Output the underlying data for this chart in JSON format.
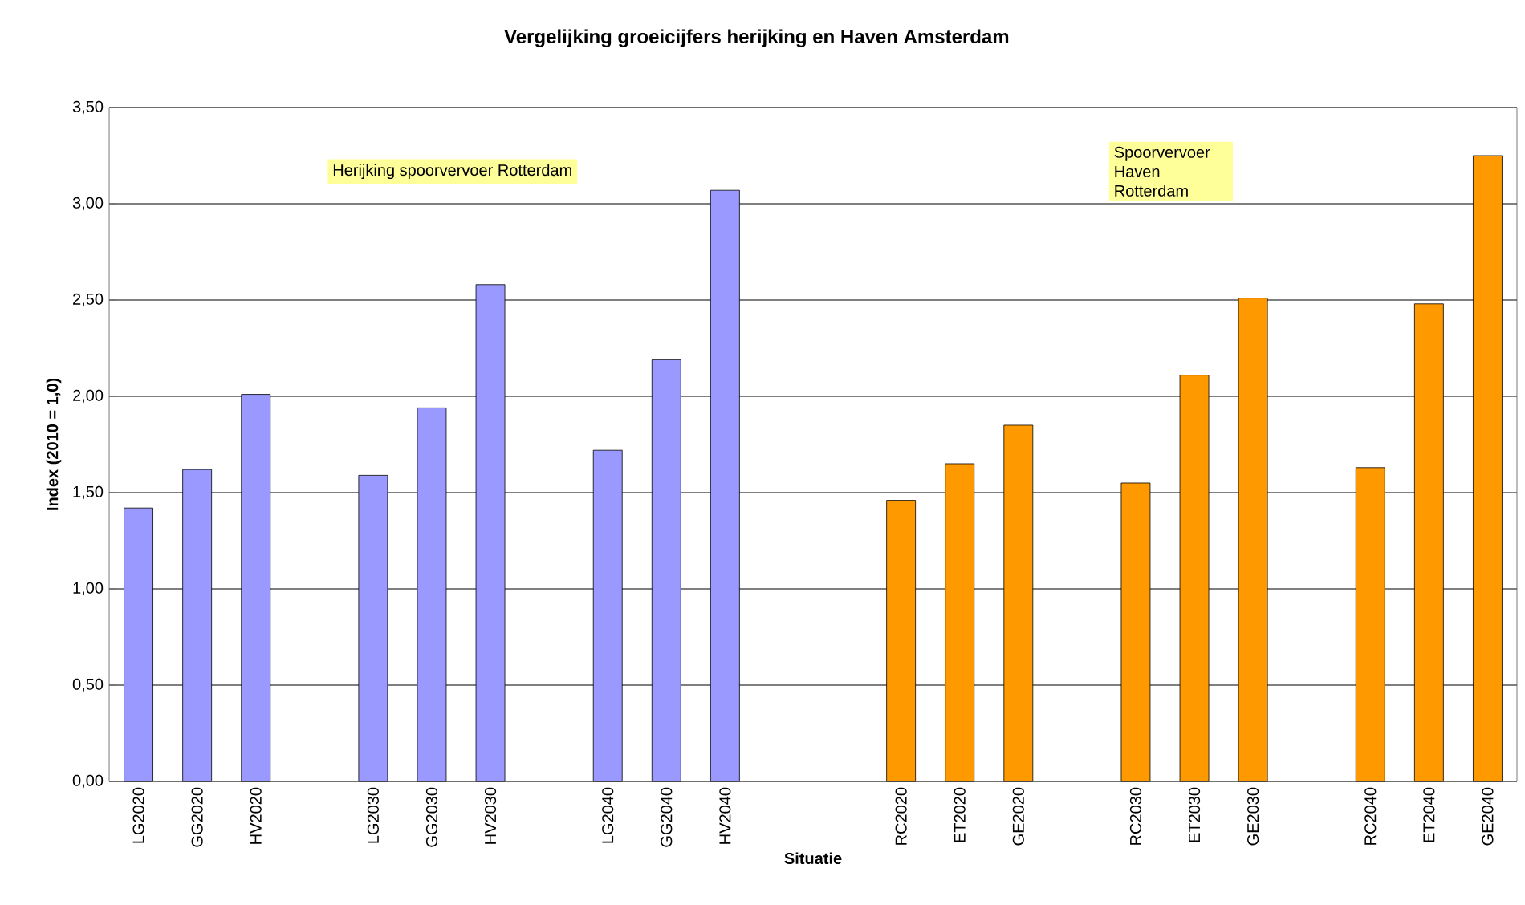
{
  "chart_data": {
    "type": "bar",
    "title": "Vergelijking groeicijfers herijking en Haven Amsterdam",
    "xlabel": "Situatie",
    "ylabel": "Index (2010 = 1,0)",
    "categories": [
      "LG2020",
      "GG2020",
      "HV2020",
      null,
      "LG2030",
      "GG2030",
      "HV2030",
      null,
      "LG2040",
      "GG2040",
      "HV2040",
      null,
      null,
      "RC2020",
      "ET2020",
      "GE2020",
      null,
      "RC2030",
      "ET2030",
      "GE2030",
      null,
      "RC2040",
      "ET2040",
      "GE2040"
    ],
    "values": [
      1.42,
      1.62,
      2.01,
      null,
      1.59,
      1.94,
      2.58,
      null,
      1.72,
      2.19,
      3.07,
      null,
      null,
      1.46,
      1.65,
      1.85,
      null,
      1.55,
      2.11,
      2.51,
      null,
      1.63,
      2.48,
      3.25
    ],
    "colors": [
      "#9999ff",
      "#9999ff",
      "#9999ff",
      null,
      "#9999ff",
      "#9999ff",
      "#9999ff",
      null,
      "#9999ff",
      "#9999ff",
      "#9999ff",
      null,
      null,
      "#ff9900",
      "#ff9900",
      "#ff9900",
      null,
      "#ff9900",
      "#ff9900",
      "#ff9900",
      null,
      "#ff9900",
      "#ff9900",
      "#ff9900"
    ],
    "ylim": [
      0,
      3.5
    ],
    "yticks": [
      {
        "value": 0,
        "label": "0,00"
      },
      {
        "value": 0.5,
        "label": "0,50"
      },
      {
        "value": 1,
        "label": "1,00"
      },
      {
        "value": 1.5,
        "label": "1,50"
      },
      {
        "value": 2,
        "label": "2,00"
      },
      {
        "value": 2.5,
        "label": "2,50"
      },
      {
        "value": 3,
        "label": "3,00"
      },
      {
        "value": 3.5,
        "label": "3,50"
      }
    ],
    "grid": "y",
    "annotations": [
      "Herijking spoorvervoer Rotterdam",
      "Spoorvervoer Haven Rotterdam"
    ]
  }
}
